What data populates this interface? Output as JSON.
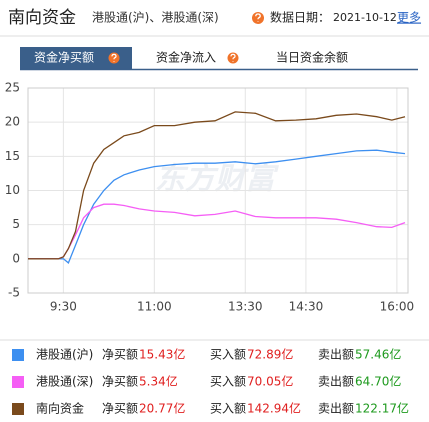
{
  "header": {
    "title": "南向资金",
    "subtitle": "港股通(沪)、港股通(深)",
    "date_label": "数据日期：",
    "date": "2021-10-12",
    "more": "更多"
  },
  "tabs": [
    "资金净买额",
    "资金净流入",
    "当日资金余额"
  ],
  "chart_data": {
    "type": "line",
    "watermark": "东方财富",
    "x": [
      -35,
      -5,
      0,
      5,
      12,
      20,
      30,
      40,
      50,
      60,
      75,
      90,
      110,
      130,
      150,
      170,
      190,
      210,
      230,
      250,
      270,
      290,
      310,
      325,
      338
    ],
    "xlim": [
      -35,
      341
    ],
    "xticks": [
      {
        "value": 0,
        "label": "9:30"
      },
      {
        "value": 90,
        "label": "11:00"
      },
      {
        "value": 180,
        "label": "13:30"
      },
      {
        "value": 240,
        "label": "14:30"
      },
      {
        "value": 330,
        "label": "16:00"
      }
    ],
    "ylim": [
      -5,
      25
    ],
    "yticks": [
      -5,
      0,
      5,
      10,
      15,
      20,
      25
    ],
    "grid": true,
    "series": [
      {
        "name": "港股通(沪)",
        "color": "#3d8ff0",
        "values": [
          0,
          0,
          0,
          -0.6,
          2,
          5,
          8,
          10,
          11.5,
          12.3,
          13,
          13.5,
          13.8,
          14,
          14,
          14.2,
          13.9,
          14.2,
          14.6,
          15,
          15.4,
          15.8,
          15.9,
          15.6,
          15.4
        ]
      },
      {
        "name": "港股通(深)",
        "color": "#f55ef5",
        "values": [
          0,
          0,
          0.3,
          1.5,
          3.5,
          6,
          7.5,
          8,
          8,
          7.8,
          7.3,
          7,
          6.8,
          6.3,
          6.5,
          7,
          6.2,
          6,
          6,
          6,
          5.8,
          5.3,
          4.7,
          4.6,
          5.3
        ]
      },
      {
        "name": "南向资金",
        "color": "#7a4a1c",
        "values": [
          0,
          0,
          0.3,
          1.5,
          4,
          10,
          14,
          16,
          17,
          18,
          18.5,
          19.5,
          19.5,
          20,
          20.2,
          21.5,
          21.3,
          20.2,
          20.3,
          20.5,
          21,
          21.2,
          20.8,
          20.3,
          20.8
        ]
      }
    ]
  },
  "table": {
    "rows": [
      {
        "net_label": "净买额",
        "net": "15.43亿",
        "buy_label": "买入额",
        "buy": "72.89亿",
        "sell_label": "卖出额",
        "sell": "57.46亿"
      },
      {
        "net_label": "净买额",
        "net": "5.34亿",
        "buy_label": "买入额",
        "buy": "70.05亿",
        "sell_label": "卖出额",
        "sell": "64.70亿"
      },
      {
        "net_label": "净买额",
        "net": "20.77亿",
        "buy_label": "买入额",
        "buy": "142.94亿",
        "sell_label": "卖出额",
        "sell": "122.17亿"
      }
    ]
  }
}
